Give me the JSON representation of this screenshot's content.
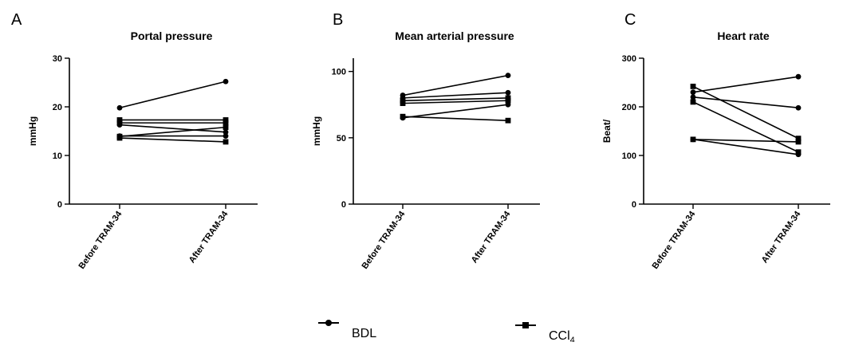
{
  "chart_data": [
    {
      "panel": "A",
      "type": "line",
      "title": "Portal pressure",
      "ylabel": "mmHg",
      "ylim": [
        0,
        30
      ],
      "yticks": [
        0,
        10,
        20,
        30
      ],
      "categories": [
        "Before TRAM-34",
        "After TRAM-34"
      ],
      "series": [
        {
          "name": "BDL",
          "marker": "circle",
          "values": [
            19.8,
            25.2
          ]
        },
        {
          "name": "BDL",
          "marker": "circle",
          "values": [
            16.3,
            14.8
          ]
        },
        {
          "name": "BDL",
          "marker": "circle",
          "values": [
            14.0,
            14.0
          ]
        },
        {
          "name": "CCl4",
          "marker": "square",
          "values": [
            17.3,
            17.3
          ]
        },
        {
          "name": "CCl4",
          "marker": "square",
          "values": [
            16.7,
            16.7
          ]
        },
        {
          "name": "CCl4",
          "marker": "square",
          "values": [
            13.9,
            15.8
          ]
        },
        {
          "name": "CCl4",
          "marker": "square",
          "values": [
            13.6,
            12.8
          ]
        }
      ]
    },
    {
      "panel": "B",
      "type": "line",
      "title": "Mean arterial pressure",
      "ylabel": "mmHg",
      "ylim": [
        0,
        110
      ],
      "yticks": [
        0,
        50,
        100
      ],
      "categories": [
        "Before TRAM-34",
        "After TRAM-34"
      ],
      "series": [
        {
          "name": "BDL",
          "marker": "circle",
          "values": [
            82,
            97
          ]
        },
        {
          "name": "BDL",
          "marker": "circle",
          "values": [
            80,
            84
          ]
        },
        {
          "name": "BDL",
          "marker": "circle",
          "values": [
            65,
            75
          ]
        },
        {
          "name": "CCl4",
          "marker": "square",
          "values": [
            78,
            80
          ]
        },
        {
          "name": "CCl4",
          "marker": "square",
          "values": [
            76,
            78
          ]
        },
        {
          "name": "CCl4",
          "marker": "square",
          "values": [
            66,
            63
          ]
        }
      ]
    },
    {
      "panel": "C",
      "type": "line",
      "title": "Heart rate",
      "ylabel": "Beat/",
      "ylim": [
        0,
        300
      ],
      "yticks": [
        0,
        100,
        200,
        300
      ],
      "categories": [
        "Before TRAM-34",
        "After TRAM-34"
      ],
      "series": [
        {
          "name": "BDL",
          "marker": "circle",
          "values": [
            230,
            262
          ]
        },
        {
          "name": "BDL",
          "marker": "circle",
          "values": [
            220,
            198
          ]
        },
        {
          "name": "BDL",
          "marker": "circle",
          "values": [
            133,
            102
          ]
        },
        {
          "name": "CCl4",
          "marker": "square",
          "values": [
            242,
            135
          ]
        },
        {
          "name": "CCl4",
          "marker": "square",
          "values": [
            210,
            107
          ]
        },
        {
          "name": "CCl4",
          "marker": "square",
          "values": [
            133,
            128
          ]
        }
      ]
    }
  ],
  "legend": {
    "placement": "bottom-center",
    "items": [
      {
        "label": "BDL",
        "marker": "circle"
      },
      {
        "label": "CCl",
        "subscript": "4",
        "marker": "square"
      }
    ]
  },
  "style": {
    "line_color": "#000000",
    "background": "#ffffff"
  }
}
